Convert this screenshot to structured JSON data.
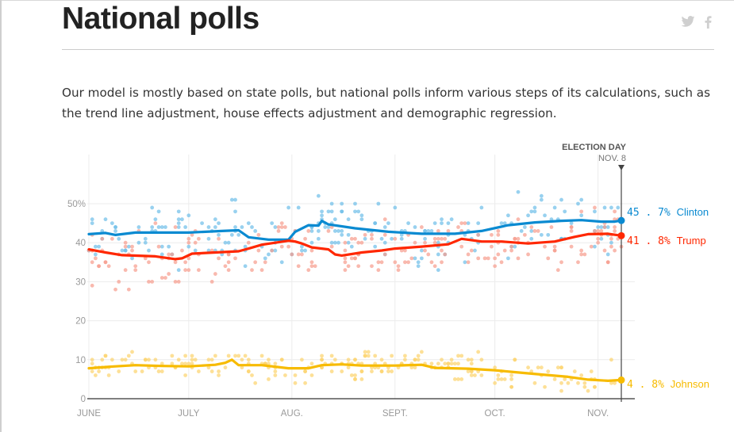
{
  "page": {
    "title": "National polls",
    "intro": "Our model is mostly based on state polls, but national polls inform various steps of its calculations, such as the trend line adjustment, house effects adjustment and demographic regression.",
    "social": [
      {
        "icon": "twitter-icon",
        "label": "Twitter"
      },
      {
        "icon": "facebook-icon",
        "label": "Facebook"
      }
    ]
  },
  "chart_data": {
    "type": "scatter",
    "title": "National polls",
    "xlabel": "",
    "ylabel": "",
    "ylim": [
      0,
      60
    ],
    "yticks": [
      0,
      10,
      20,
      30,
      40,
      50
    ],
    "ytick_labels": [
      "0",
      "10",
      "20",
      "30",
      "40",
      "50%"
    ],
    "x_domain_days": [
      0,
      163
    ],
    "xticks": [
      {
        "label": "JUNE",
        "day": 0
      },
      {
        "label": "JULY",
        "day": 30
      },
      {
        "label": "AUG.",
        "day": 61
      },
      {
        "label": "SEPT.",
        "day": 92
      },
      {
        "label": "OCT.",
        "day": 122
      },
      {
        "label": "NOV.",
        "day": 153
      }
    ],
    "grid": true,
    "annotation": {
      "title": "ELECTION DAY",
      "subtitle": "NOV. 8",
      "day": 160
    },
    "series": [
      {
        "name": "Clinton",
        "color": "#0a8ad1",
        "dot_color": "#6cbde8",
        "final_label": "45.7%",
        "final_value": 45.7,
        "trend": [
          [
            0,
            42.2
          ],
          [
            5,
            42.5
          ],
          [
            8,
            42.0
          ],
          [
            14,
            42.6
          ],
          [
            20,
            42.6
          ],
          [
            30,
            42.6
          ],
          [
            40,
            43.0
          ],
          [
            45,
            43.2
          ],
          [
            48,
            41.4
          ],
          [
            54,
            40.8
          ],
          [
            60,
            40.8
          ],
          [
            62,
            42.8
          ],
          [
            66,
            44.5
          ],
          [
            69,
            44.4
          ],
          [
            70,
            45.6
          ],
          [
            72,
            44.7
          ],
          [
            80,
            43.7
          ],
          [
            90,
            42.8
          ],
          [
            100,
            42.3
          ],
          [
            110,
            42.3
          ],
          [
            118,
            43.0
          ],
          [
            126,
            44.5
          ],
          [
            134,
            45.2
          ],
          [
            142,
            45.6
          ],
          [
            148,
            45.8
          ],
          [
            154,
            45.4
          ],
          [
            158,
            45.4
          ],
          [
            160,
            45.7
          ]
        ],
        "polls_note": "approx. scatter of individual poll results between ~33% and ~58%"
      },
      {
        "name": "Trump",
        "color": "#ff2700",
        "dot_color": "#f79b8c",
        "final_label": "41.8%",
        "final_value": 41.8,
        "trend": [
          [
            0,
            38.3
          ],
          [
            5,
            37.5
          ],
          [
            10,
            36.8
          ],
          [
            20,
            36.5
          ],
          [
            26,
            35.8
          ],
          [
            28,
            36.0
          ],
          [
            31,
            37.2
          ],
          [
            38,
            37.5
          ],
          [
            45,
            37.8
          ],
          [
            48,
            38.5
          ],
          [
            52,
            39.5
          ],
          [
            56,
            40.0
          ],
          [
            60,
            40.5
          ],
          [
            62,
            40.3
          ],
          [
            64,
            39.8
          ],
          [
            67,
            38.8
          ],
          [
            72,
            38.3
          ],
          [
            74,
            37.0
          ],
          [
            76,
            36.7
          ],
          [
            82,
            37.5
          ],
          [
            88,
            38.0
          ],
          [
            92,
            38.5
          ],
          [
            100,
            39.0
          ],
          [
            108,
            39.6
          ],
          [
            112,
            41.0
          ],
          [
            118,
            40.3
          ],
          [
            124,
            40.3
          ],
          [
            132,
            39.8
          ],
          [
            140,
            40.3
          ],
          [
            146,
            41.5
          ],
          [
            150,
            42.2
          ],
          [
            156,
            42.3
          ],
          [
            160,
            41.8
          ]
        ],
        "polls_note": "approx. scatter of individual poll results between ~29% and ~51%"
      },
      {
        "name": "Johnson",
        "color": "#f7bb00",
        "dot_color": "#fcd36b",
        "final_label": "4.8%",
        "final_value": 4.8,
        "trend": [
          [
            0,
            7.8
          ],
          [
            6,
            8.2
          ],
          [
            14,
            8.6
          ],
          [
            22,
            8.4
          ],
          [
            30,
            8.3
          ],
          [
            38,
            8.7
          ],
          [
            41,
            9.2
          ],
          [
            43,
            10.0
          ],
          [
            45,
            8.6
          ],
          [
            52,
            8.6
          ],
          [
            60,
            7.8
          ],
          [
            66,
            7.8
          ],
          [
            70,
            8.6
          ],
          [
            76,
            8.8
          ],
          [
            82,
            8.5
          ],
          [
            92,
            8.5
          ],
          [
            100,
            8.7
          ],
          [
            104,
            7.9
          ],
          [
            114,
            7.7
          ],
          [
            122,
            7.3
          ],
          [
            128,
            6.8
          ],
          [
            136,
            6.2
          ],
          [
            144,
            5.6
          ],
          [
            150,
            4.9
          ],
          [
            156,
            4.6
          ],
          [
            160,
            4.8
          ]
        ],
        "polls_note": "approx. scatter of individual poll results between ~3% and ~13%"
      }
    ],
    "legend": "right-end labels"
  }
}
